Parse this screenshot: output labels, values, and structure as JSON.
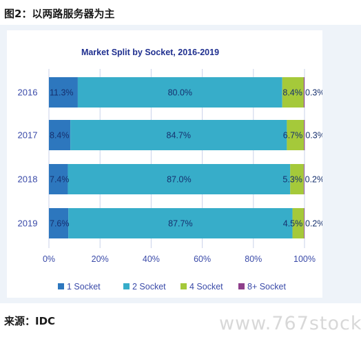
{
  "header": {
    "title": "图2：以两路服务器为主"
  },
  "source": "来源：IDC",
  "watermark": "www.767stock",
  "colors": {
    "panel": "#eef3f9",
    "title": "#1f2f8f",
    "axis_text": "#3a4aa8",
    "grid": "#c9d2ea",
    "bar_text": "#16306e"
  },
  "chart_data": {
    "type": "bar",
    "orientation": "horizontal",
    "stacked": true,
    "title": "Market Split by Socket, 2016-2019",
    "categories": [
      "2016",
      "2017",
      "2018",
      "2019"
    ],
    "series": [
      {
        "name": "1 Socket",
        "color": "#2d77be",
        "values": [
          11.3,
          8.4,
          7.4,
          7.6
        ],
        "labels": [
          "11.3%",
          "8.4%",
          "7.4%",
          "7.6%"
        ]
      },
      {
        "name": "2 Socket",
        "color": "#37adc9",
        "values": [
          80.0,
          84.7,
          87.0,
          87.7
        ],
        "labels": [
          "80.0%",
          "84.7%",
          "87.0%",
          "87.7%"
        ]
      },
      {
        "name": "4 Socket",
        "color": "#a5c93a",
        "values": [
          8.4,
          6.7,
          5.3,
          4.5
        ],
        "labels": [
          "8.4%",
          "6.7%",
          "5.3%",
          "4.5%"
        ]
      },
      {
        "name": "8+ Socket",
        "color": "#8e3f8b",
        "values": [
          0.3,
          0.3,
          0.2,
          0.2
        ],
        "labels": [
          "0.3%",
          "0.3%",
          "0.2%",
          "0.2%"
        ]
      }
    ],
    "xlim": [
      0,
      100
    ],
    "xticks": [
      "0%",
      "20%",
      "40%",
      "60%",
      "80%",
      "100%"
    ],
    "grid": true,
    "legend_position": "bottom"
  }
}
